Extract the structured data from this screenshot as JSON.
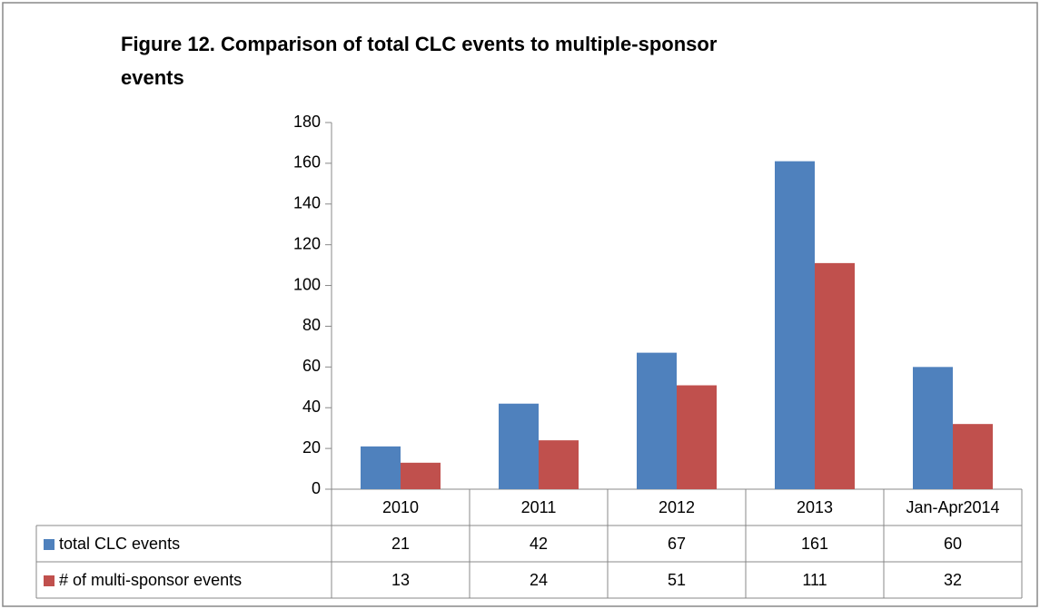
{
  "chart_data": {
    "type": "bar",
    "title": "Figure 12. Comparison of total CLC events to multiple-sponsor events",
    "categories": [
      "2010",
      "2011",
      "2012",
      "2013",
      "Jan-Apr2014"
    ],
    "series": [
      {
        "name": "total CLC events",
        "color": "#4f81bd",
        "values": [
          21,
          42,
          67,
          161,
          60
        ]
      },
      {
        "name": "# of multi-sponsor events",
        "color": "#c0504d",
        "values": [
          13,
          24,
          51,
          111,
          32
        ]
      }
    ],
    "ylim": [
      0,
      180
    ],
    "yticks": [
      0,
      20,
      40,
      60,
      80,
      100,
      120,
      140,
      160,
      180
    ],
    "grid": false
  }
}
